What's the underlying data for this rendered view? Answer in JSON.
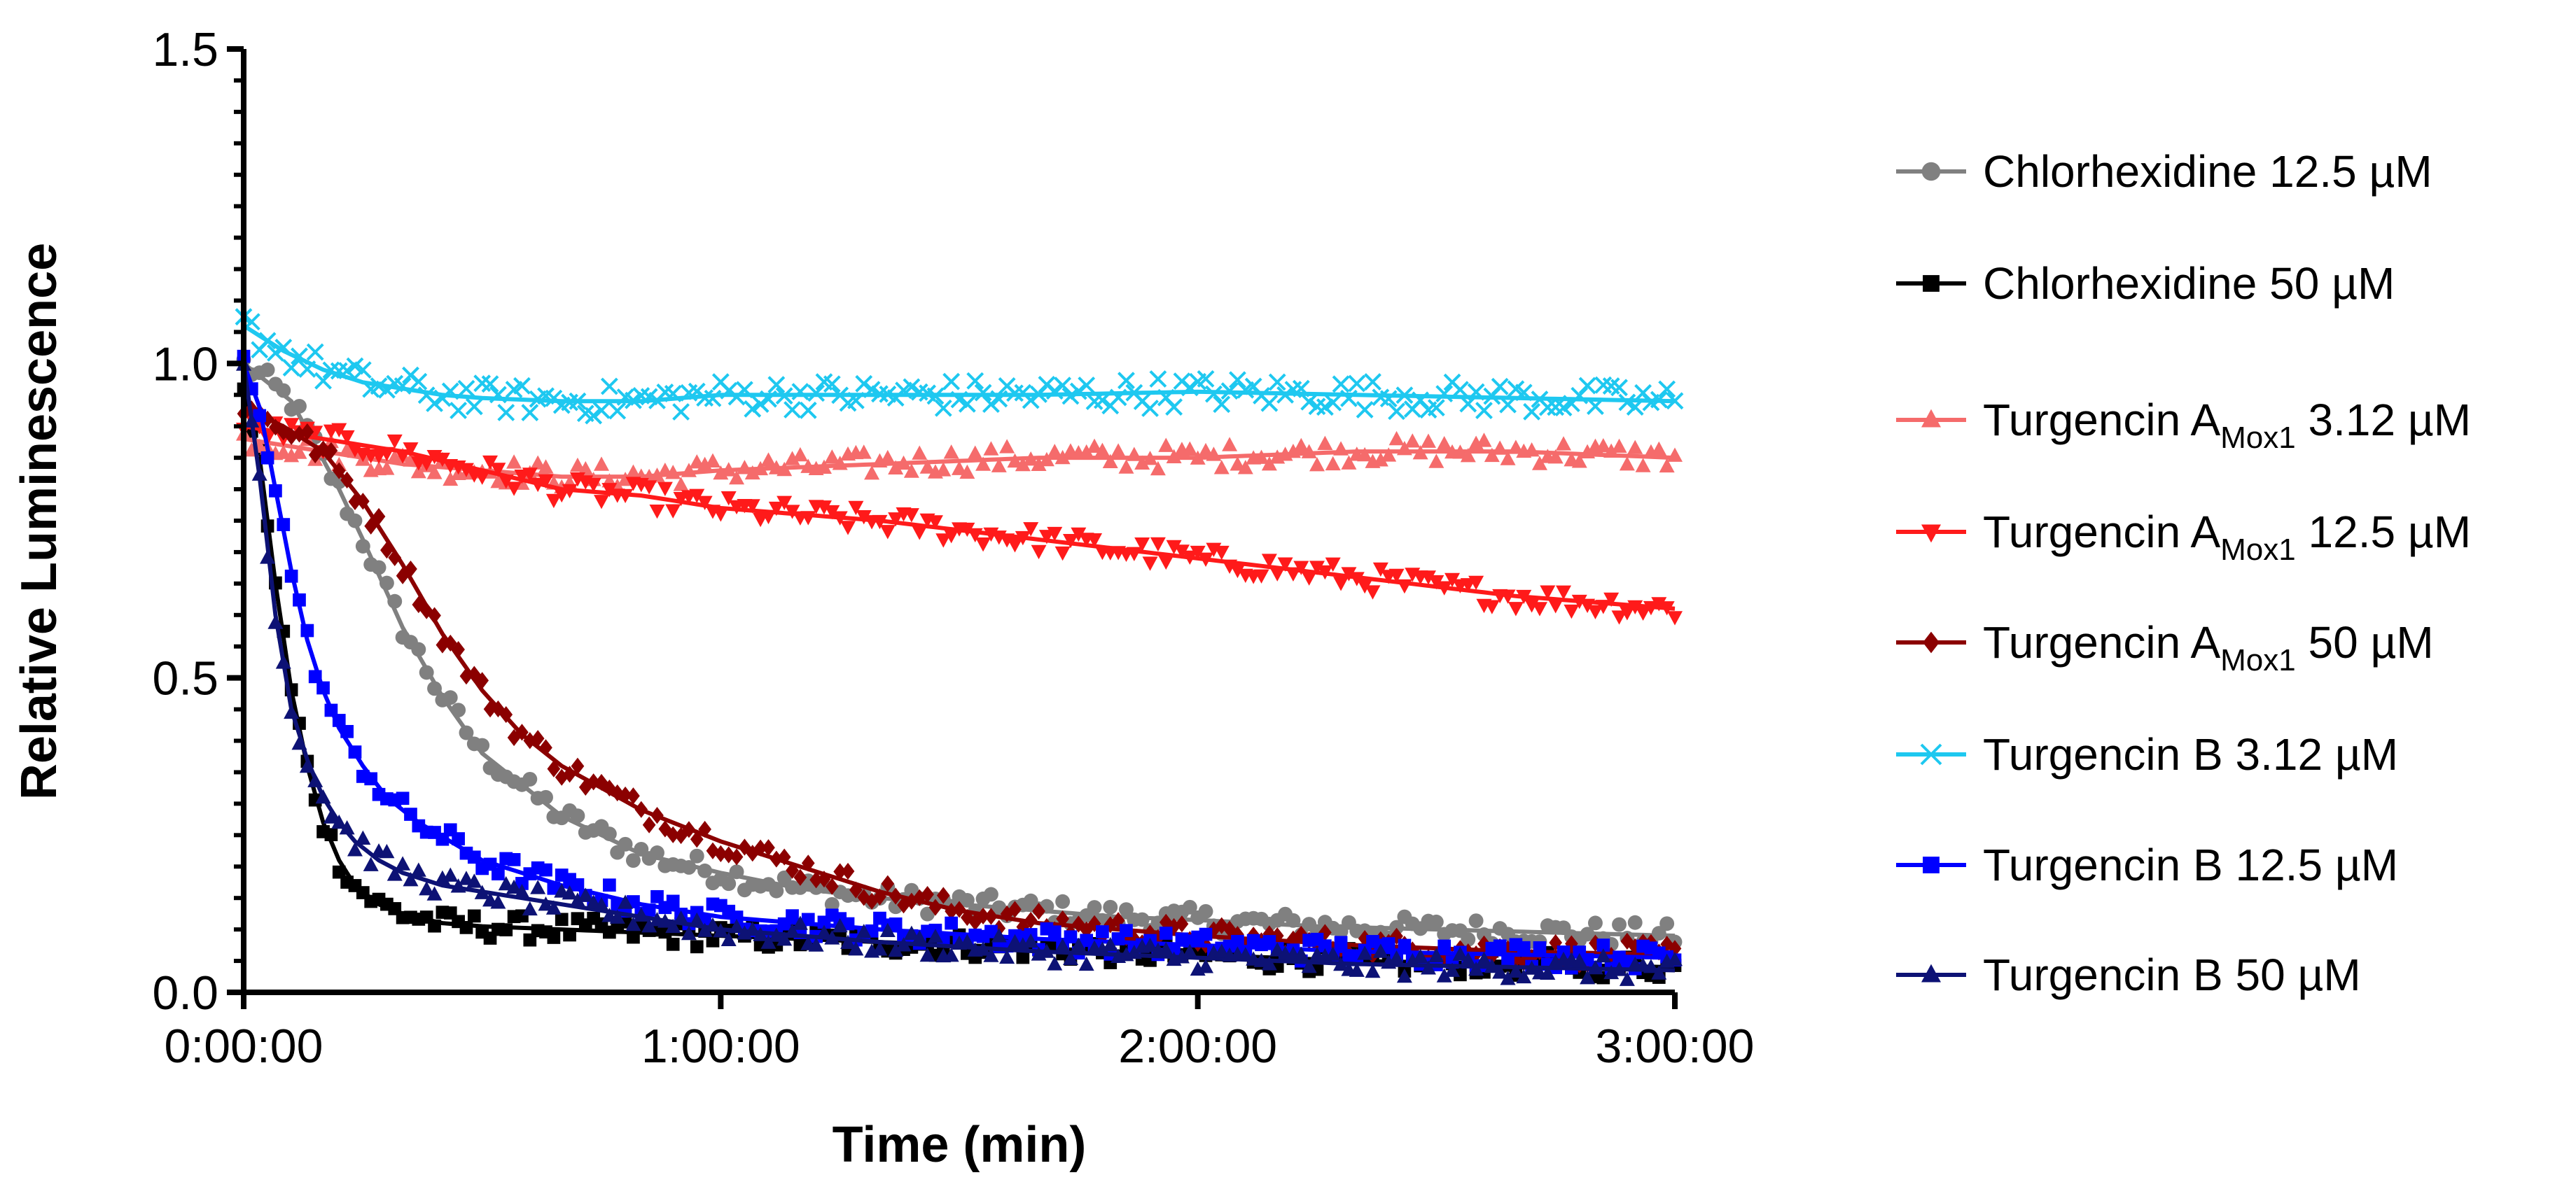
{
  "chart_data": {
    "type": "scatter",
    "title": "",
    "xlabel": "Time (min)",
    "ylabel": "Relative Luminescence",
    "x_unit": "minutes",
    "xlim": [
      0,
      180
    ],
    "ylim": [
      0,
      1.5
    ],
    "x_ticks": [
      0,
      60,
      120,
      180
    ],
    "x_tick_labels": [
      "0:00:00",
      "1:00:00",
      "2:00:00",
      "3:00:00"
    ],
    "y_ticks": [
      0,
      0.5,
      1,
      1.5
    ],
    "y_tick_labels": [
      "0.0",
      "0.5",
      "1.0",
      "1.5"
    ],
    "grid": false,
    "legend_position": "right",
    "series": [
      {
        "name": "Chlorhexidine 12.5 µM",
        "label_main": "Chlorhexidine 12.5 µM",
        "label_sub": "",
        "label_tail": "",
        "color": "#808080",
        "marker": "circle",
        "x": [
          0,
          3,
          6,
          9,
          12,
          15,
          20,
          25,
          30,
          40,
          50,
          60,
          70,
          80,
          90,
          100,
          110,
          120,
          135,
          150,
          165,
          180
        ],
        "y": [
          1.0,
          0.97,
          0.94,
          0.87,
          0.8,
          0.72,
          0.58,
          0.47,
          0.38,
          0.28,
          0.22,
          0.19,
          0.165,
          0.15,
          0.14,
          0.13,
          0.12,
          0.115,
          0.105,
          0.1,
          0.095,
          0.09
        ]
      },
      {
        "name": "Chlorhexidine 50 µM",
        "label_main": "Chlorhexidine 50 µM",
        "label_sub": "",
        "label_tail": "",
        "color": "#000000",
        "marker": "square",
        "x": [
          0,
          2,
          4,
          6,
          8,
          10,
          12,
          14,
          17,
          20,
          25,
          30,
          40,
          60,
          80,
          100,
          120,
          140,
          160,
          180
        ],
        "y": [
          0.95,
          0.85,
          0.65,
          0.48,
          0.36,
          0.27,
          0.21,
          0.17,
          0.14,
          0.125,
          0.11,
          0.105,
          0.1,
          0.09,
          0.08,
          0.07,
          0.06,
          0.05,
          0.045,
          0.04
        ]
      },
      {
        "name": "Turgencin AMox1 3.12 µM",
        "label_main": "Turgencin A",
        "label_sub": "Mox1",
        "label_tail": " 3.12 µM",
        "color": "#f56b6b",
        "marker": "triangle-up",
        "x": [
          0,
          10,
          20,
          30,
          40,
          50,
          60,
          80,
          100,
          120,
          140,
          160,
          180
        ],
        "y": [
          0.88,
          0.86,
          0.84,
          0.83,
          0.82,
          0.82,
          0.83,
          0.84,
          0.85,
          0.85,
          0.86,
          0.86,
          0.85
        ]
      },
      {
        "name": "Turgencin AMox1 12.5 µM",
        "label_main": "Turgencin A",
        "label_sub": "Mox1",
        "label_tail": " 12.5 µM",
        "color": "#ff1a1a",
        "marker": "triangle-down",
        "x": [
          0,
          10,
          20,
          30,
          40,
          50,
          60,
          80,
          100,
          120,
          140,
          160,
          180
        ],
        "y": [
          0.9,
          0.88,
          0.86,
          0.83,
          0.8,
          0.79,
          0.77,
          0.75,
          0.72,
          0.69,
          0.66,
          0.63,
          0.61
        ]
      },
      {
        "name": "Turgencin AMox1 50 µM",
        "label_main": "Turgencin A",
        "label_sub": "Mox1",
        "label_tail": " 50 µM",
        "color": "#8b0000",
        "marker": "diamond",
        "x": [
          0,
          5,
          10,
          15,
          20,
          25,
          30,
          35,
          40,
          50,
          60,
          70,
          80,
          90,
          100,
          120,
          140,
          160,
          180
        ],
        "y": [
          0.93,
          0.9,
          0.86,
          0.78,
          0.68,
          0.57,
          0.48,
          0.41,
          0.36,
          0.29,
          0.24,
          0.2,
          0.16,
          0.13,
          0.11,
          0.09,
          0.075,
          0.065,
          0.06
        ]
      },
      {
        "name": "Turgencin B 3.12 µM",
        "label_main": "Turgencin B 3.12 µM",
        "label_sub": "",
        "label_tail": "",
        "color": "#1ec8f0",
        "marker": "cross",
        "x": [
          0,
          5,
          10,
          15,
          20,
          25,
          30,
          40,
          50,
          60,
          80,
          100,
          120,
          140,
          160,
          180
        ],
        "y": [
          1.06,
          1.02,
          0.99,
          0.97,
          0.96,
          0.95,
          0.945,
          0.94,
          0.94,
          0.95,
          0.95,
          0.95,
          0.955,
          0.95,
          0.945,
          0.94
        ]
      },
      {
        "name": "Turgencin B 12.5 µM",
        "label_main": "Turgencin B 12.5 µM",
        "label_sub": "",
        "label_tail": "",
        "color": "#0000ff",
        "marker": "square",
        "x": [
          0,
          2,
          4,
          6,
          8,
          10,
          12,
          15,
          18,
          22,
          26,
          30,
          40,
          50,
          60,
          80,
          100,
          120,
          140,
          160,
          180
        ],
        "y": [
          1.0,
          0.93,
          0.8,
          0.67,
          0.56,
          0.48,
          0.42,
          0.36,
          0.31,
          0.27,
          0.24,
          0.21,
          0.17,
          0.14,
          0.12,
          0.1,
          0.085,
          0.075,
          0.065,
          0.06,
          0.055
        ]
      },
      {
        "name": "Turgencin B 50 µM",
        "label_main": "Turgencin B 50 µM",
        "label_sub": "",
        "label_tail": "",
        "color": "#0d1275",
        "marker": "triangle-up",
        "x": [
          0,
          2,
          4,
          6,
          8,
          10,
          12,
          14,
          17,
          20,
          25,
          30,
          40,
          50,
          60,
          80,
          100,
          120,
          140,
          160,
          180
        ],
        "y": [
          1.0,
          0.82,
          0.6,
          0.45,
          0.37,
          0.31,
          0.27,
          0.24,
          0.21,
          0.19,
          0.17,
          0.16,
          0.14,
          0.12,
          0.1,
          0.08,
          0.065,
          0.055,
          0.045,
          0.04,
          0.035
        ]
      }
    ]
  }
}
